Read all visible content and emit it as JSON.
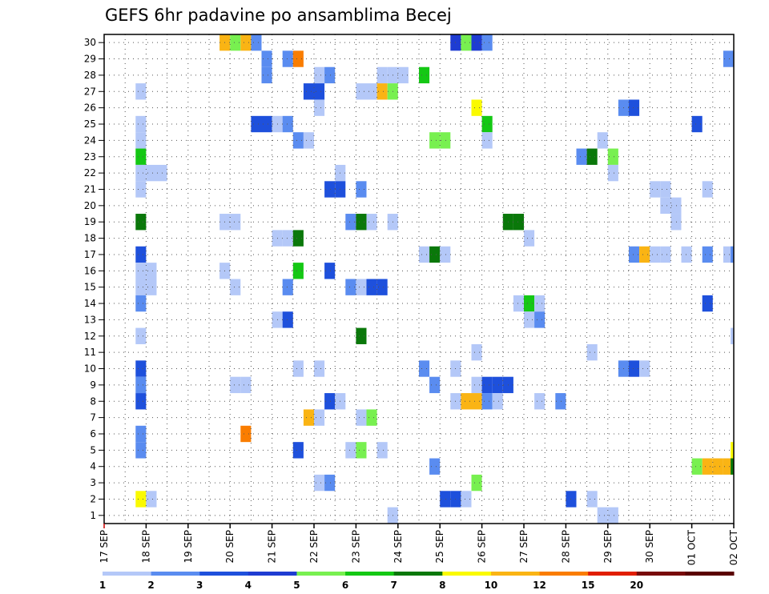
{
  "chart_data": {
    "type": "heatmap",
    "title": "GEFS 6hr padavine po ansamblima Becej",
    "xlabel": "",
    "ylabel": "",
    "x_ticks": [
      "17 SEP",
      "18 SEP",
      "19 SEP",
      "20 SEP",
      "21 SEP",
      "22 SEP",
      "23 SEP",
      "24 SEP",
      "25 SEP",
      "26 SEP",
      "27 SEP",
      "28 SEP",
      "29 SEP",
      "30 SEP",
      "01 OCT",
      "02 OCT"
    ],
    "x_tick_units": [
      0,
      4,
      8,
      12,
      16,
      20,
      24,
      28,
      32,
      36,
      40,
      44,
      48,
      52,
      56,
      60
    ],
    "x_unit": "6-hour step from 17 SEP 00Z",
    "xlim": [
      0,
      60
    ],
    "y_ticks": [
      "1",
      "2",
      "3",
      "4",
      "5",
      "6",
      "7",
      "8",
      "9",
      "10",
      "11",
      "12",
      "13",
      "14",
      "15",
      "16",
      "17",
      "18",
      "19",
      "20",
      "21",
      "22",
      "23",
      "24",
      "25",
      "26",
      "27",
      "28",
      "29",
      "30"
    ],
    "ylim": [
      0.5,
      30.5
    ],
    "grid": true,
    "legend": {
      "labels": [
        "1",
        "2",
        "3",
        "4",
        "5",
        "6",
        "7",
        "8",
        "10",
        "12",
        "15",
        "20"
      ],
      "colors": [
        "#b4c8f8",
        "#5a8cf0",
        "#1e50dc",
        "#1e3cd2",
        "#78f050",
        "#14c814",
        "#0a780a",
        "#fafa00",
        "#fab414",
        "#fa7d00",
        "#e11e00",
        "#780a0a",
        "#5a0000"
      ]
    },
    "cells": [
      [
        30,
        11.5,
        10
      ],
      [
        30,
        12.5,
        5
      ],
      [
        30,
        13.5,
        10
      ],
      [
        30,
        14.5,
        2
      ],
      [
        30,
        33.5,
        4
      ],
      [
        30,
        34.5,
        5
      ],
      [
        30,
        35.5,
        4
      ],
      [
        30,
        36.5,
        2
      ],
      [
        29,
        15.5,
        2
      ],
      [
        29,
        17.5,
        2
      ],
      [
        29,
        18.5,
        12
      ],
      [
        29,
        59.5,
        2
      ],
      [
        28,
        15.5,
        2
      ],
      [
        28,
        20.5,
        1
      ],
      [
        28,
        21.5,
        2
      ],
      [
        28,
        26.5,
        1
      ],
      [
        28,
        27.5,
        1
      ],
      [
        28,
        28.5,
        1
      ],
      [
        28,
        30.5,
        6
      ],
      [
        27,
        3.5,
        1
      ],
      [
        27,
        19.5,
        3
      ],
      [
        27,
        20.5,
        3
      ],
      [
        27,
        24.5,
        1
      ],
      [
        27,
        25.5,
        1
      ],
      [
        27,
        26.5,
        10
      ],
      [
        27,
        27.5,
        5
      ],
      [
        26,
        20.5,
        1
      ],
      [
        26,
        35.5,
        8
      ],
      [
        26,
        49.5,
        2
      ],
      [
        26,
        50.5,
        3
      ],
      [
        25,
        3.5,
        1
      ],
      [
        25,
        14.5,
        3
      ],
      [
        25,
        15.5,
        3
      ],
      [
        25,
        16.5,
        1
      ],
      [
        25,
        17.5,
        2
      ],
      [
        25,
        36.5,
        6
      ],
      [
        25,
        56.5,
        3
      ],
      [
        24,
        3.5,
        1
      ],
      [
        24,
        18.5,
        2
      ],
      [
        24,
        19.5,
        1
      ],
      [
        24,
        31.5,
        5
      ],
      [
        24,
        32.5,
        5
      ],
      [
        24,
        36.5,
        1
      ],
      [
        24,
        47.5,
        1
      ],
      [
        23,
        3.5,
        6
      ],
      [
        23,
        45.5,
        2
      ],
      [
        23,
        46.5,
        7
      ],
      [
        23,
        48.5,
        5
      ],
      [
        22,
        3.5,
        1
      ],
      [
        22,
        4.5,
        1
      ],
      [
        22,
        5.5,
        1
      ],
      [
        22,
        22.5,
        1
      ],
      [
        22,
        48.5,
        1
      ],
      [
        21,
        3.5,
        1
      ],
      [
        21,
        21.5,
        3
      ],
      [
        21,
        22.5,
        3
      ],
      [
        21,
        24.5,
        2
      ],
      [
        21,
        52.5,
        1
      ],
      [
        21,
        53.5,
        1
      ],
      [
        21,
        57.5,
        1
      ],
      [
        20,
        53.5,
        1
      ],
      [
        20,
        54.5,
        1
      ],
      [
        19,
        3.5,
        7
      ],
      [
        19,
        11.5,
        1
      ],
      [
        19,
        12.5,
        1
      ],
      [
        19,
        23.5,
        2
      ],
      [
        19,
        24.5,
        7
      ],
      [
        19,
        25.5,
        1
      ],
      [
        19,
        27.5,
        1
      ],
      [
        19,
        38.5,
        7
      ],
      [
        19,
        39.5,
        7
      ],
      [
        19,
        54.5,
        1
      ],
      [
        18,
        16.5,
        1
      ],
      [
        18,
        17.5,
        1
      ],
      [
        18,
        18.5,
        7
      ],
      [
        18,
        40.5,
        1
      ],
      [
        17,
        3.5,
        3
      ],
      [
        17,
        30.5,
        1
      ],
      [
        17,
        31.5,
        7
      ],
      [
        17,
        32.5,
        1
      ],
      [
        17,
        50.5,
        2
      ],
      [
        17,
        51.5,
        10
      ],
      [
        17,
        52.5,
        1
      ],
      [
        17,
        53.5,
        1
      ],
      [
        17,
        55.5,
        1
      ],
      [
        17,
        57.5,
        2
      ],
      [
        17,
        59.5,
        1
      ],
      [
        17,
        60.2,
        2
      ],
      [
        16,
        3.5,
        1
      ],
      [
        16,
        4.5,
        1
      ],
      [
        16,
        11.5,
        1
      ],
      [
        16,
        18.5,
        6
      ],
      [
        16,
        21.5,
        3
      ],
      [
        15,
        3.5,
        1
      ],
      [
        15,
        4.5,
        1
      ],
      [
        15,
        12.5,
        1
      ],
      [
        15,
        17.5,
        2
      ],
      [
        15,
        23.5,
        2
      ],
      [
        15,
        24.5,
        1
      ],
      [
        15,
        25.5,
        3
      ],
      [
        15,
        26.5,
        3
      ],
      [
        14,
        3.5,
        2
      ],
      [
        14,
        39.5,
        1
      ],
      [
        14,
        40.5,
        6
      ],
      [
        14,
        41.5,
        1
      ],
      [
        14,
        57.5,
        3
      ],
      [
        13,
        16.5,
        1
      ],
      [
        13,
        17.5,
        3
      ],
      [
        13,
        40.5,
        1
      ],
      [
        13,
        41.5,
        2
      ],
      [
        12,
        3.5,
        1
      ],
      [
        12,
        24.5,
        7
      ],
      [
        12,
        60.2,
        1
      ],
      [
        11,
        35.5,
        1
      ],
      [
        11,
        46.5,
        1
      ],
      [
        10,
        3.5,
        3
      ],
      [
        10,
        18.5,
        1
      ],
      [
        10,
        20.5,
        1
      ],
      [
        10,
        30.5,
        2
      ],
      [
        10,
        33.5,
        1
      ],
      [
        10,
        49.5,
        2
      ],
      [
        10,
        50.5,
        3
      ],
      [
        10,
        51.5,
        1
      ],
      [
        9,
        3.5,
        2
      ],
      [
        9,
        12.5,
        1
      ],
      [
        9,
        13.5,
        1
      ],
      [
        9,
        31.5,
        2
      ],
      [
        9,
        35.5,
        1
      ],
      [
        9,
        36.5,
        3
      ],
      [
        9,
        37.5,
        3
      ],
      [
        9,
        38.5,
        3
      ],
      [
        8,
        3.5,
        3
      ],
      [
        8,
        21.5,
        3
      ],
      [
        8,
        22.5,
        1
      ],
      [
        8,
        33.5,
        1
      ],
      [
        8,
        34.5,
        10
      ],
      [
        8,
        35.5,
        10
      ],
      [
        8,
        36.5,
        2
      ],
      [
        8,
        37.5,
        1
      ],
      [
        8,
        41.5,
        1
      ],
      [
        8,
        43.5,
        2
      ],
      [
        7,
        19.5,
        11
      ],
      [
        7,
        20.5,
        1
      ],
      [
        7,
        24.5,
        1
      ],
      [
        7,
        25.5,
        5
      ],
      [
        6,
        3.5,
        2
      ],
      [
        6,
        13.5,
        13
      ],
      [
        5,
        3.5,
        2
      ],
      [
        5,
        18.5,
        3
      ],
      [
        5,
        23.5,
        1
      ],
      [
        5,
        24.5,
        5
      ],
      [
        5,
        26.5,
        1
      ],
      [
        5,
        60.2,
        8
      ],
      [
        4,
        31.5,
        2
      ],
      [
        4,
        56.5,
        5
      ],
      [
        4,
        57.5,
        11
      ],
      [
        4,
        58.5,
        11
      ],
      [
        4,
        59.5,
        10
      ],
      [
        4,
        60.2,
        7
      ],
      [
        3,
        20.5,
        1
      ],
      [
        3,
        21.5,
        2
      ],
      [
        3,
        35.5,
        5
      ],
      [
        2,
        3.5,
        8
      ],
      [
        2,
        4.5,
        1
      ],
      [
        2,
        32.5,
        3
      ],
      [
        2,
        33.5,
        3
      ],
      [
        2,
        34.5,
        1
      ],
      [
        2,
        44.5,
        3
      ],
      [
        2,
        46.5,
        1
      ],
      [
        1,
        27.5,
        1
      ],
      [
        1,
        47.5,
        1
      ],
      [
        1,
        48.5,
        1
      ]
    ]
  }
}
